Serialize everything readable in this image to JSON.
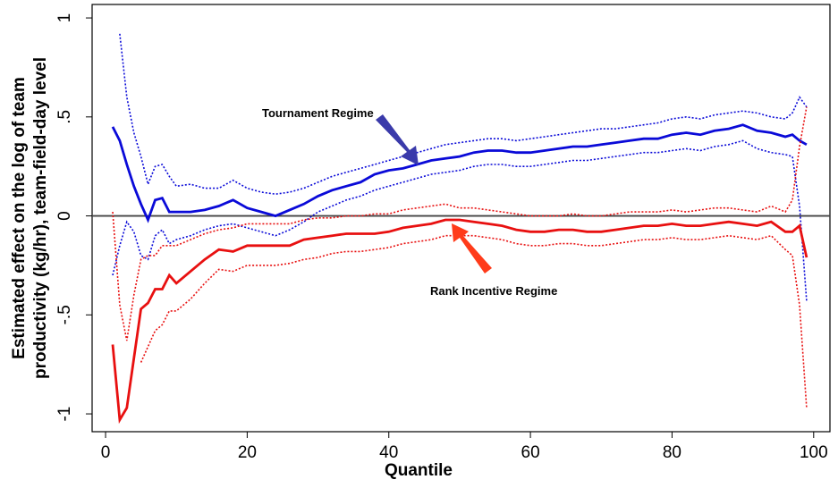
{
  "chart_data": {
    "type": "line",
    "xlabel": "Quantile",
    "ylabel": [
      "Estimated effect on the log of  team",
      "productivity (kg/hr), team-field-day level"
    ],
    "annotations": [
      "Tournament Regime",
      "Rank Incentive Regime"
    ],
    "xlim": [
      -1.9,
      102.3
    ],
    "ylim": [
      -1.09,
      1.068
    ],
    "xticks": [
      0,
      20,
      40,
      60,
      80,
      100
    ],
    "yticks": [
      {
        "value": -1,
        "label": "-1"
      },
      {
        "value": -0.5,
        "label": "-.5"
      },
      0,
      {
        "value": 0.5,
        "label": ".5"
      },
      1
    ],
    "reference_line": 0,
    "grid": false,
    "x": [
      1,
      2,
      3,
      4,
      5,
      6,
      7,
      8,
      9,
      10,
      12,
      14,
      16,
      18,
      20,
      22,
      24,
      26,
      28,
      30,
      32,
      34,
      36,
      38,
      40,
      42,
      44,
      46,
      48,
      50,
      52,
      54,
      56,
      58,
      60,
      62,
      64,
      66,
      68,
      70,
      72,
      74,
      76,
      78,
      80,
      82,
      84,
      86,
      88,
      90,
      92,
      94,
      96,
      97,
      98,
      99
    ],
    "series": [
      {
        "color": "#0a0ad8",
        "style": "solid",
        "values": [
          0.45,
          0.38,
          0.26,
          0.15,
          0.06,
          -0.02,
          0.08,
          0.09,
          0.02,
          0.02,
          0.02,
          0.03,
          0.05,
          0.08,
          0.04,
          0.02,
          0.0,
          0.03,
          0.06,
          0.1,
          0.13,
          0.15,
          0.17,
          0.21,
          0.23,
          0.24,
          0.26,
          0.28,
          0.29,
          0.3,
          0.32,
          0.33,
          0.33,
          0.32,
          0.32,
          0.33,
          0.34,
          0.35,
          0.35,
          0.36,
          0.37,
          0.38,
          0.39,
          0.39,
          0.41,
          0.42,
          0.41,
          0.43,
          0.44,
          0.46,
          0.43,
          0.42,
          0.4,
          0.41,
          0.38,
          0.36
        ]
      },
      {
        "color": "#0a0ad8",
        "style": "dotted",
        "values": [
          null,
          0.92,
          0.6,
          0.42,
          0.3,
          0.16,
          0.25,
          0.26,
          0.2,
          0.15,
          0.16,
          0.14,
          0.14,
          0.18,
          0.14,
          0.12,
          0.11,
          0.12,
          0.14,
          0.17,
          0.2,
          0.22,
          0.24,
          0.26,
          0.28,
          0.3,
          0.32,
          0.34,
          0.36,
          0.37,
          0.38,
          0.39,
          0.39,
          0.38,
          0.39,
          0.4,
          0.41,
          0.42,
          0.43,
          0.44,
          0.44,
          0.45,
          0.46,
          0.47,
          0.49,
          0.5,
          0.49,
          0.51,
          0.52,
          0.53,
          0.52,
          0.5,
          0.49,
          0.52,
          0.6,
          0.55
        ]
      },
      {
        "color": "#0a0ad8",
        "style": "dotted",
        "values": [
          -0.3,
          -0.15,
          -0.03,
          -0.08,
          -0.2,
          -0.22,
          -0.1,
          -0.07,
          -0.14,
          -0.12,
          -0.1,
          -0.07,
          -0.05,
          -0.04,
          -0.06,
          -0.08,
          -0.1,
          -0.07,
          -0.03,
          0.02,
          0.05,
          0.08,
          0.1,
          0.13,
          0.15,
          0.17,
          0.19,
          0.21,
          0.22,
          0.23,
          0.25,
          0.26,
          0.26,
          0.25,
          0.25,
          0.26,
          0.27,
          0.28,
          0.28,
          0.29,
          0.3,
          0.31,
          0.32,
          0.32,
          0.33,
          0.34,
          0.33,
          0.35,
          0.36,
          0.38,
          0.34,
          0.32,
          0.31,
          0.3,
          0.05,
          -0.43
        ]
      },
      {
        "color": "#e81010",
        "style": "solid",
        "values": [
          -0.65,
          -1.03,
          -0.97,
          -0.72,
          -0.47,
          -0.44,
          -0.37,
          -0.37,
          -0.3,
          -0.34,
          -0.28,
          -0.22,
          -0.17,
          -0.18,
          -0.15,
          -0.15,
          -0.15,
          -0.15,
          -0.12,
          -0.11,
          -0.1,
          -0.09,
          -0.09,
          -0.09,
          -0.08,
          -0.06,
          -0.05,
          -0.04,
          -0.02,
          -0.02,
          -0.03,
          -0.04,
          -0.05,
          -0.07,
          -0.08,
          -0.08,
          -0.07,
          -0.07,
          -0.08,
          -0.08,
          -0.07,
          -0.06,
          -0.05,
          -0.05,
          -0.04,
          -0.05,
          -0.05,
          -0.04,
          -0.03,
          -0.04,
          -0.05,
          -0.03,
          -0.08,
          -0.08,
          -0.05,
          -0.21
        ]
      },
      {
        "color": "#e81010",
        "style": "dotted",
        "values": [
          0.02,
          -0.45,
          -0.63,
          -0.4,
          -0.22,
          -0.2,
          -0.2,
          -0.15,
          -0.15,
          -0.15,
          -0.12,
          -0.09,
          -0.07,
          -0.06,
          -0.04,
          -0.04,
          -0.04,
          -0.04,
          -0.02,
          -0.01,
          -0.01,
          0.0,
          0.0,
          0.01,
          0.01,
          0.03,
          0.04,
          0.05,
          0.06,
          0.04,
          0.04,
          0.03,
          0.02,
          0.01,
          0.0,
          0.0,
          0.0,
          0.01,
          0.0,
          0.0,
          0.01,
          0.02,
          0.02,
          0.02,
          0.03,
          0.02,
          0.03,
          0.04,
          0.04,
          0.03,
          0.02,
          0.05,
          0.02,
          0.08,
          0.35,
          0.55
        ]
      },
      {
        "color": "#e81010",
        "style": "dotted",
        "values": [
          null,
          null,
          null,
          null,
          -0.74,
          -0.66,
          -0.58,
          -0.55,
          -0.48,
          -0.48,
          -0.42,
          -0.34,
          -0.27,
          -0.28,
          -0.25,
          -0.25,
          -0.25,
          -0.24,
          -0.22,
          -0.21,
          -0.19,
          -0.18,
          -0.18,
          -0.17,
          -0.16,
          -0.14,
          -0.13,
          -0.12,
          -0.1,
          -0.1,
          -0.1,
          -0.11,
          -0.12,
          -0.14,
          -0.15,
          -0.15,
          -0.14,
          -0.14,
          -0.15,
          -0.15,
          -0.14,
          -0.13,
          -0.12,
          -0.12,
          -0.11,
          -0.12,
          -0.12,
          -0.11,
          -0.1,
          -0.11,
          -0.12,
          -0.1,
          -0.17,
          -0.2,
          -0.45,
          -0.97
        ]
      }
    ]
  }
}
